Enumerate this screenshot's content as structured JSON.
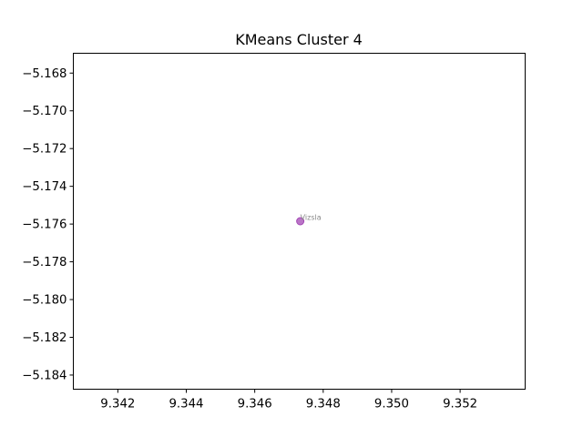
{
  "chart_data": {
    "type": "scatter",
    "title": "KMeans Cluster 4",
    "xlabel": "",
    "ylabel": "",
    "xlim": [
      9.3407,
      9.3539
    ],
    "ylim": [
      -5.18475,
      -5.16695
    ],
    "grid": false,
    "xticks": [
      9.342,
      9.344,
      9.346,
      9.348,
      9.35,
      9.352
    ],
    "xtick_labels": [
      "9.342",
      "9.344",
      "9.346",
      "9.348",
      "9.350",
      "9.352"
    ],
    "yticks": [
      -5.168,
      -5.17,
      -5.172,
      -5.174,
      -5.176,
      -5.178,
      -5.18,
      -5.182,
      -5.184
    ],
    "ytick_labels": [
      "−5.168",
      "−5.170",
      "−5.172",
      "−5.174",
      "−5.176",
      "−5.178",
      "−5.180",
      "−5.182",
      "−5.184"
    ],
    "points": [
      {
        "x": 9.34733,
        "y": -5.17585,
        "label": "Vizsla",
        "color": "#a347b4"
      }
    ],
    "label_color": "#888888"
  }
}
